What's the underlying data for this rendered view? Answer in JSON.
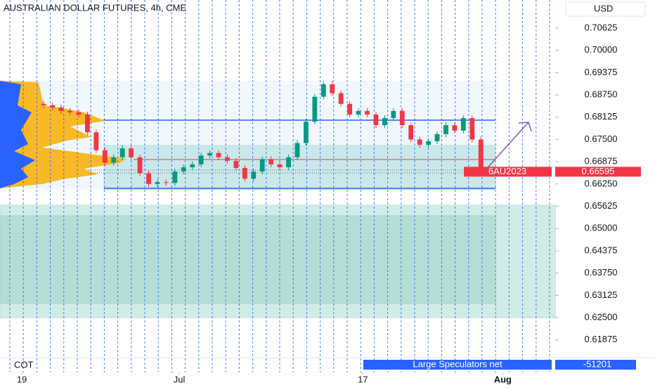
{
  "chart_data": {
    "type": "candlestick",
    "title": "AUSTRALIAN DOLLAR FUTURES, 4h, CME",
    "currency": "USD",
    "symbol": "6AU2023",
    "last_price": 0.66595,
    "x": [
      5,
      7,
      9,
      11,
      13,
      15,
      17,
      19,
      21,
      23,
      25,
      27,
      29,
      31,
      33,
      35,
      37,
      39,
      41,
      43,
      45,
      47,
      49,
      51,
      53,
      55,
      57,
      59,
      61,
      63,
      65,
      67,
      69,
      71,
      73,
      75,
      77,
      79,
      81,
      83,
      85,
      87,
      89,
      91,
      93,
      95,
      97,
      99,
      101,
      103,
      105
    ],
    "open": [
      0.685,
      0.6846,
      0.684,
      0.683,
      0.6826,
      0.682,
      0.677,
      0.672,
      0.6685,
      0.67,
      0.6725,
      0.67,
      0.6655,
      0.6625,
      0.663,
      0.6628,
      0.666,
      0.6672,
      0.668,
      0.6705,
      0.6712,
      0.67,
      0.669,
      0.667,
      0.664,
      0.666,
      0.6695,
      0.668,
      0.6672,
      0.67,
      0.674,
      0.68,
      0.687,
      0.6905,
      0.688,
      0.685,
      0.682,
      0.683,
      0.682,
      0.679,
      0.681,
      0.683,
      0.679,
      0.675,
      0.6735,
      0.6745,
      0.6765,
      0.679,
      0.6775,
      0.681,
      0.675
    ],
    "high": [
      0.6858,
      0.6854,
      0.6848,
      0.6838,
      0.6834,
      0.6828,
      0.6778,
      0.6728,
      0.6708,
      0.6733,
      0.6733,
      0.6708,
      0.6663,
      0.6638,
      0.6638,
      0.6668,
      0.668,
      0.6688,
      0.6713,
      0.672,
      0.672,
      0.6708,
      0.6698,
      0.6678,
      0.6668,
      0.6703,
      0.6703,
      0.6688,
      0.6708,
      0.6748,
      0.6808,
      0.6878,
      0.6913,
      0.6913,
      0.6888,
      0.6858,
      0.6838,
      0.6838,
      0.6828,
      0.6818,
      0.6838,
      0.6838,
      0.6798,
      0.6758,
      0.6753,
      0.6773,
      0.6798,
      0.6798,
      0.6818,
      0.6818,
      0.6758
    ],
    "low": [
      0.6838,
      0.6832,
      0.6822,
      0.6818,
      0.6812,
      0.6762,
      0.6712,
      0.6677,
      0.6677,
      0.6692,
      0.6692,
      0.6647,
      0.6617,
      0.6617,
      0.662,
      0.662,
      0.6652,
      0.6664,
      0.6672,
      0.6697,
      0.6692,
      0.6682,
      0.6662,
      0.6632,
      0.6632,
      0.6652,
      0.6672,
      0.6664,
      0.6664,
      0.6692,
      0.6732,
      0.6792,
      0.6862,
      0.6872,
      0.6842,
      0.6812,
      0.6812,
      0.6812,
      0.6782,
      0.6782,
      0.6802,
      0.6782,
      0.6742,
      0.6727,
      0.6727,
      0.6737,
      0.6757,
      0.6767,
      0.6767,
      0.6742,
      0.66515
    ],
    "close": [
      0.6846,
      0.684,
      0.683,
      0.6826,
      0.682,
      0.677,
      0.672,
      0.6685,
      0.67,
      0.6725,
      0.67,
      0.6655,
      0.6625,
      0.663,
      0.6628,
      0.666,
      0.6672,
      0.668,
      0.6705,
      0.6712,
      0.67,
      0.669,
      0.667,
      0.664,
      0.666,
      0.6695,
      0.668,
      0.6672,
      0.67,
      0.674,
      0.68,
      0.687,
      0.6905,
      0.688,
      0.685,
      0.682,
      0.683,
      0.682,
      0.679,
      0.681,
      0.683,
      0.679,
      0.675,
      0.6735,
      0.6745,
      0.6765,
      0.679,
      0.6775,
      0.681,
      0.675,
      0.66595
    ],
    "up_color": "#089981",
    "down_color": "#f23645",
    "xlim": [
      -5,
      122
    ],
    "xticks": [
      {
        "value": 0,
        "label": "19"
      },
      {
        "value": 36,
        "label": "Jul"
      },
      {
        "value": 78,
        "label": "17"
      },
      {
        "value": 110,
        "label": "Aug"
      }
    ],
    "ylim": [
      0.61554,
      0.71414
    ],
    "yticks": [
      0.70625,
      {
        "value": 0.7,
        "label": "0.70000"
      },
      0.69375,
      {
        "value": 0.6875,
        "label": "0.68750"
      },
      0.68125,
      {
        "value": 0.675,
        "label": "0.67500"
      },
      0.66875,
      {
        "value": 0.6625,
        "label": "0.66250"
      },
      0.65625,
      {
        "value": 0.65,
        "label": "0.65000"
      },
      0.64375,
      {
        "value": 0.6375,
        "label": "0.63750"
      },
      0.63125,
      {
        "value": 0.625,
        "label": "0.62500"
      },
      0.61875
    ],
    "indicator": {
      "name": "COT",
      "label": "Large Speculators net",
      "value": -51201
    }
  }
}
